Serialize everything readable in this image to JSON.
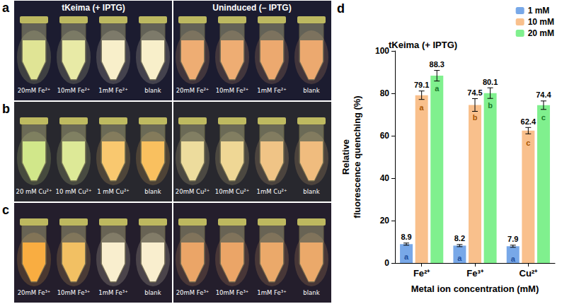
{
  "photos": {
    "header": {
      "left": "tKeima (+ IPTG)",
      "right": "Uninduced (– IPTG)"
    },
    "panels": [
      {
        "letter": "a",
        "left": {
          "labels": [
            "20mM Fe²⁺",
            "10mM Fe²⁺",
            "1mM Fe²⁺",
            "blank"
          ],
          "colors": [
            "#e6ea98",
            "#eef0aa",
            "#fff6d0",
            "#fff6d0"
          ]
        },
        "right": {
          "labels": [
            "20mM Fe²⁺",
            "10mM Fe²⁺",
            "1mM Fe²⁺",
            "blank"
          ],
          "colors": [
            "#f4b074",
            "#f4b074",
            "#f2ac70",
            "#f2ac70"
          ]
        }
      },
      {
        "letter": "b",
        "left": {
          "labels": [
            "20 mM Cu²⁺",
            "10 mM Cu²⁺",
            "1 mM Cu²⁺",
            "blank"
          ],
          "colors": [
            "#d6ec8c",
            "#e2ee9a",
            "#ffcc70",
            "#ffc460"
          ]
        },
        "right": {
          "labels": [
            "20mM Cu²⁺",
            "10mM Cu²⁺",
            "1mM Cu²⁺",
            "blank"
          ],
          "colors": [
            "#f2e2a0",
            "#f4dc98",
            "#f6c888",
            "#f6c080"
          ]
        }
      },
      {
        "letter": "c",
        "left": {
          "labels": [
            "20mM Fe³⁺",
            "10mM Fe³⁺",
            "1mM Fe³⁺",
            "blank"
          ],
          "colors": [
            "#ffb040",
            "#f8c464",
            "#fff4d4",
            "#fff4d4"
          ]
        },
        "right": {
          "labels": [
            "20mM Fe³⁺",
            "10mM Fe³⁺",
            "1mM Fe³⁺",
            "blank"
          ],
          "colors": [
            "#f0a868",
            "#f0a868",
            "#f0ac6c",
            "#f0ac6c"
          ]
        }
      }
    ]
  },
  "chart_panel": {
    "letter": "d"
  },
  "chart_data": {
    "type": "bar",
    "title": "tKeima (+ IPTG)",
    "x_label": "Metal ion concentration (mM)",
    "y_label": "Relative fluorescence quenching (%)",
    "categories": [
      "Fe²⁺",
      "Fe³⁺",
      "Cu²⁺"
    ],
    "series": [
      {
        "name": "1 mM",
        "color": "#78a8e8",
        "values": [
          8.9,
          8.2,
          7.9
        ],
        "errors": [
          0.5,
          0.5,
          0.5
        ],
        "letters": [
          "a",
          "a",
          "a"
        ]
      },
      {
        "name": "10 mM",
        "color": "#f9c08c",
        "values": [
          79.1,
          74.5,
          62.4
        ],
        "errors": [
          2.0,
          3.0,
          1.5
        ],
        "letters": [
          "a",
          "b",
          "c"
        ]
      },
      {
        "name": "20 mM",
        "color": "#80f08e",
        "values": [
          88.3,
          80.1,
          74.4
        ],
        "errors": [
          2.5,
          2.5,
          2.0
        ],
        "letters": [
          "a",
          "b",
          "c"
        ]
      }
    ],
    "ylim": [
      0,
      100
    ],
    "yticks": [
      0,
      20,
      40,
      60,
      80,
      100
    ],
    "grid": false,
    "legend": "upper right",
    "data_labels": true
  }
}
